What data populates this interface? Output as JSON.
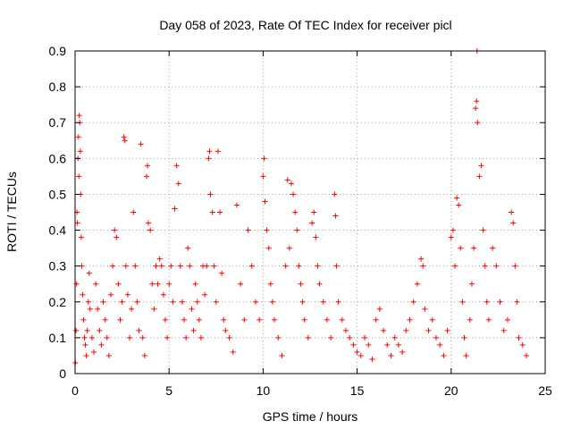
{
  "chart_data": {
    "type": "scatter",
    "title": "Day 058 of 2023, Rate Of TEC Index for receiver picl",
    "xlabel": "GPS time / hours",
    "ylabel": "ROTI / TECUs",
    "xlim": [
      0,
      25
    ],
    "ylim": [
      0,
      0.9
    ],
    "xticks": [
      0,
      5,
      10,
      15,
      20,
      25
    ],
    "yticks": [
      0,
      0.1,
      0.2,
      0.3,
      0.4,
      0.5,
      0.6,
      0.7,
      0.8,
      0.9
    ],
    "grid": true,
    "marker": "+",
    "color": "#ff0000",
    "series": [
      {
        "name": "ROTI",
        "points": [
          [
            0.02,
            0.03
          ],
          [
            0.05,
            0.12
          ],
          [
            0.08,
            0.25
          ],
          [
            0.1,
            0.45
          ],
          [
            0.12,
            0.42
          ],
          [
            0.15,
            0.6
          ],
          [
            0.18,
            0.66
          ],
          [
            0.2,
            0.55
          ],
          [
            0.22,
            0.72
          ],
          [
            0.25,
            0.7
          ],
          [
            0.28,
            0.62
          ],
          [
            0.3,
            0.5
          ],
          [
            0.33,
            0.38
          ],
          [
            0.36,
            0.3
          ],
          [
            0.4,
            0.22
          ],
          [
            0.45,
            0.15
          ],
          [
            0.5,
            0.1
          ],
          [
            0.55,
            0.08
          ],
          [
            0.6,
            0.05
          ],
          [
            0.65,
            0.12
          ],
          [
            0.7,
            0.2
          ],
          [
            0.75,
            0.28
          ],
          [
            0.8,
            0.18
          ],
          [
            0.9,
            0.1
          ],
          [
            1.0,
            0.06
          ],
          [
            1.1,
            0.25
          ],
          [
            1.2,
            0.18
          ],
          [
            1.3,
            0.12
          ],
          [
            1.4,
            0.08
          ],
          [
            1.5,
            0.2
          ],
          [
            1.6,
            0.15
          ],
          [
            1.7,
            0.1
          ],
          [
            1.8,
            0.05
          ],
          [
            1.9,
            0.22
          ],
          [
            2.0,
            0.3
          ],
          [
            2.1,
            0.4
          ],
          [
            2.2,
            0.38
          ],
          [
            2.3,
            0.25
          ],
          [
            2.4,
            0.15
          ],
          [
            2.5,
            0.2
          ],
          [
            2.6,
            0.66
          ],
          [
            2.65,
            0.65
          ],
          [
            2.7,
            0.3
          ],
          [
            2.8,
            0.22
          ],
          [
            2.9,
            0.1
          ],
          [
            3.0,
            0.18
          ],
          [
            3.1,
            0.45
          ],
          [
            3.2,
            0.3
          ],
          [
            3.3,
            0.2
          ],
          [
            3.4,
            0.12
          ],
          [
            3.5,
            0.64
          ],
          [
            3.6,
            0.1
          ],
          [
            3.7,
            0.05
          ],
          [
            3.8,
            0.55
          ],
          [
            3.85,
            0.58
          ],
          [
            3.9,
            0.42
          ],
          [
            4.0,
            0.4
          ],
          [
            4.1,
            0.25
          ],
          [
            4.2,
            0.18
          ],
          [
            4.3,
            0.3
          ],
          [
            4.4,
            0.25
          ],
          [
            4.5,
            0.32
          ],
          [
            4.6,
            0.3
          ],
          [
            4.7,
            0.22
          ],
          [
            4.8,
            0.15
          ],
          [
            4.9,
            0.1
          ],
          [
            5.0,
            0.25
          ],
          [
            5.1,
            0.3
          ],
          [
            5.2,
            0.2
          ],
          [
            5.3,
            0.46
          ],
          [
            5.4,
            0.58
          ],
          [
            5.5,
            0.53
          ],
          [
            5.6,
            0.3
          ],
          [
            5.7,
            0.2
          ],
          [
            5.8,
            0.15
          ],
          [
            5.9,
            0.1
          ],
          [
            6.0,
            0.35
          ],
          [
            6.1,
            0.3
          ],
          [
            6.2,
            0.18
          ],
          [
            6.3,
            0.12
          ],
          [
            6.4,
            0.25
          ],
          [
            6.5,
            0.2
          ],
          [
            6.6,
            0.15
          ],
          [
            6.7,
            0.1
          ],
          [
            6.8,
            0.3
          ],
          [
            6.9,
            0.22
          ],
          [
            7.0,
            0.3
          ],
          [
            7.1,
            0.6
          ],
          [
            7.15,
            0.62
          ],
          [
            7.2,
            0.5
          ],
          [
            7.3,
            0.45
          ],
          [
            7.4,
            0.3
          ],
          [
            7.5,
            0.2
          ],
          [
            7.6,
            0.62
          ],
          [
            7.7,
            0.45
          ],
          [
            7.8,
            0.28
          ],
          [
            7.9,
            0.15
          ],
          [
            8.0,
            0.12
          ],
          [
            8.2,
            0.1
          ],
          [
            8.4,
            0.06
          ],
          [
            8.6,
            0.47
          ],
          [
            8.8,
            0.25
          ],
          [
            9.0,
            0.15
          ],
          [
            9.2,
            0.4
          ],
          [
            9.4,
            0.3
          ],
          [
            9.6,
            0.2
          ],
          [
            9.8,
            0.15
          ],
          [
            10.0,
            0.55
          ],
          [
            10.05,
            0.6
          ],
          [
            10.1,
            0.48
          ],
          [
            10.2,
            0.4
          ],
          [
            10.3,
            0.35
          ],
          [
            10.4,
            0.25
          ],
          [
            10.5,
            0.2
          ],
          [
            10.6,
            0.15
          ],
          [
            10.8,
            0.1
          ],
          [
            11.0,
            0.05
          ],
          [
            11.2,
            0.3
          ],
          [
            11.3,
            0.54
          ],
          [
            11.4,
            0.35
          ],
          [
            11.5,
            0.53
          ],
          [
            11.6,
            0.5
          ],
          [
            11.7,
            0.45
          ],
          [
            11.8,
            0.4
          ],
          [
            11.9,
            0.3
          ],
          [
            12.0,
            0.25
          ],
          [
            12.1,
            0.2
          ],
          [
            12.2,
            0.15
          ],
          [
            12.4,
            0.1
          ],
          [
            12.6,
            0.42
          ],
          [
            12.7,
            0.45
          ],
          [
            12.8,
            0.38
          ],
          [
            12.9,
            0.3
          ],
          [
            13.0,
            0.25
          ],
          [
            13.2,
            0.2
          ],
          [
            13.4,
            0.15
          ],
          [
            13.6,
            0.1
          ],
          [
            13.8,
            0.5
          ],
          [
            13.85,
            0.44
          ],
          [
            13.9,
            0.3
          ],
          [
            14.0,
            0.2
          ],
          [
            14.2,
            0.15
          ],
          [
            14.4,
            0.12
          ],
          [
            14.6,
            0.1
          ],
          [
            14.8,
            0.08
          ],
          [
            15.0,
            0.06
          ],
          [
            15.2,
            0.05
          ],
          [
            15.4,
            0.1
          ],
          [
            15.6,
            0.08
          ],
          [
            15.8,
            0.04
          ],
          [
            16.0,
            0.15
          ],
          [
            16.2,
            0.18
          ],
          [
            16.4,
            0.12
          ],
          [
            16.6,
            0.08
          ],
          [
            16.8,
            0.05
          ],
          [
            17.0,
            0.1
          ],
          [
            17.2,
            0.08
          ],
          [
            17.4,
            0.06
          ],
          [
            17.6,
            0.12
          ],
          [
            17.8,
            0.15
          ],
          [
            18.0,
            0.2
          ],
          [
            18.2,
            0.25
          ],
          [
            18.4,
            0.32
          ],
          [
            18.5,
            0.3
          ],
          [
            18.6,
            0.18
          ],
          [
            18.8,
            0.12
          ],
          [
            19.0,
            0.15
          ],
          [
            19.2,
            0.1
          ],
          [
            19.4,
            0.08
          ],
          [
            19.6,
            0.05
          ],
          [
            19.8,
            0.12
          ],
          [
            20.0,
            0.38
          ],
          [
            20.1,
            0.4
          ],
          [
            20.2,
            0.3
          ],
          [
            20.3,
            0.49
          ],
          [
            20.4,
            0.47
          ],
          [
            20.5,
            0.35
          ],
          [
            20.6,
            0.2
          ],
          [
            20.7,
            0.1
          ],
          [
            20.8,
            0.05
          ],
          [
            21.0,
            0.15
          ],
          [
            21.1,
            0.25
          ],
          [
            21.2,
            0.35
          ],
          [
            21.3,
            0.74
          ],
          [
            21.35,
            0.76
          ],
          [
            21.4,
            0.7
          ],
          [
            21.38,
            0.9
          ],
          [
            21.5,
            0.55
          ],
          [
            21.6,
            0.58
          ],
          [
            21.7,
            0.4
          ],
          [
            21.8,
            0.3
          ],
          [
            21.9,
            0.2
          ],
          [
            22.0,
            0.15
          ],
          [
            22.2,
            0.35
          ],
          [
            22.4,
            0.3
          ],
          [
            22.6,
            0.2
          ],
          [
            22.8,
            0.12
          ],
          [
            23.0,
            0.15
          ],
          [
            23.2,
            0.45
          ],
          [
            23.3,
            0.42
          ],
          [
            23.4,
            0.3
          ],
          [
            23.5,
            0.2
          ],
          [
            23.6,
            0.1
          ],
          [
            23.8,
            0.08
          ],
          [
            24.0,
            0.05
          ]
        ]
      }
    ]
  }
}
